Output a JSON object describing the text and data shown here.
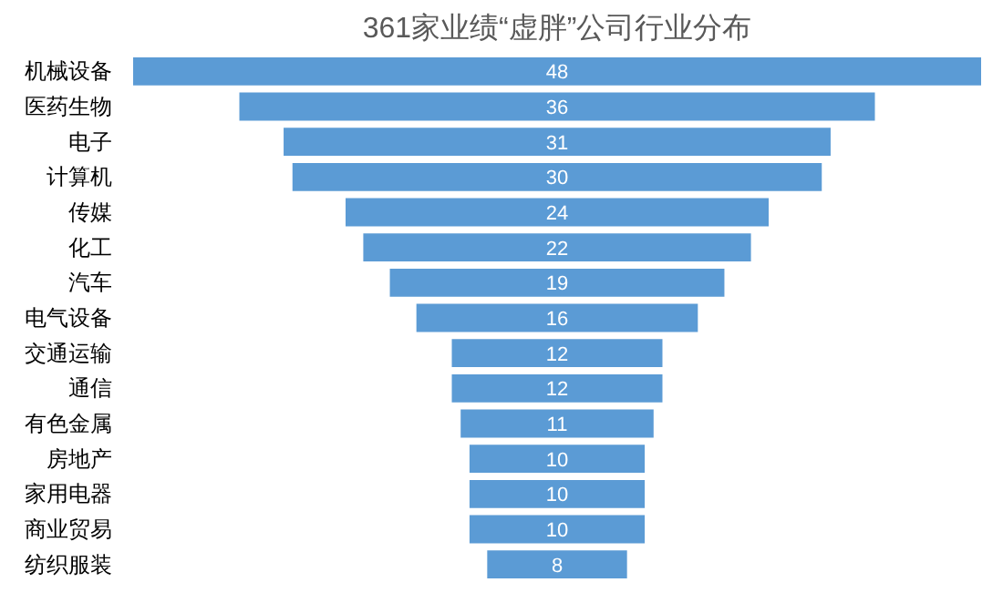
{
  "chart_data": {
    "type": "other",
    "title": "361家业绩“虚胖”公司行业分布",
    "categories": [
      "机械设备",
      "医药生物",
      "电子",
      "计算机",
      "传媒",
      "化工",
      "汽车",
      "电气设备",
      "交通运输",
      "通信",
      "有色金属",
      "房地产",
      "家用电器",
      "商业贸易",
      "纺织服装"
    ],
    "values": [
      48,
      36,
      31,
      30,
      24,
      22,
      19,
      16,
      12,
      12,
      11,
      10,
      10,
      10,
      8
    ],
    "color": "#5b9bd5",
    "data_labels": true
  }
}
